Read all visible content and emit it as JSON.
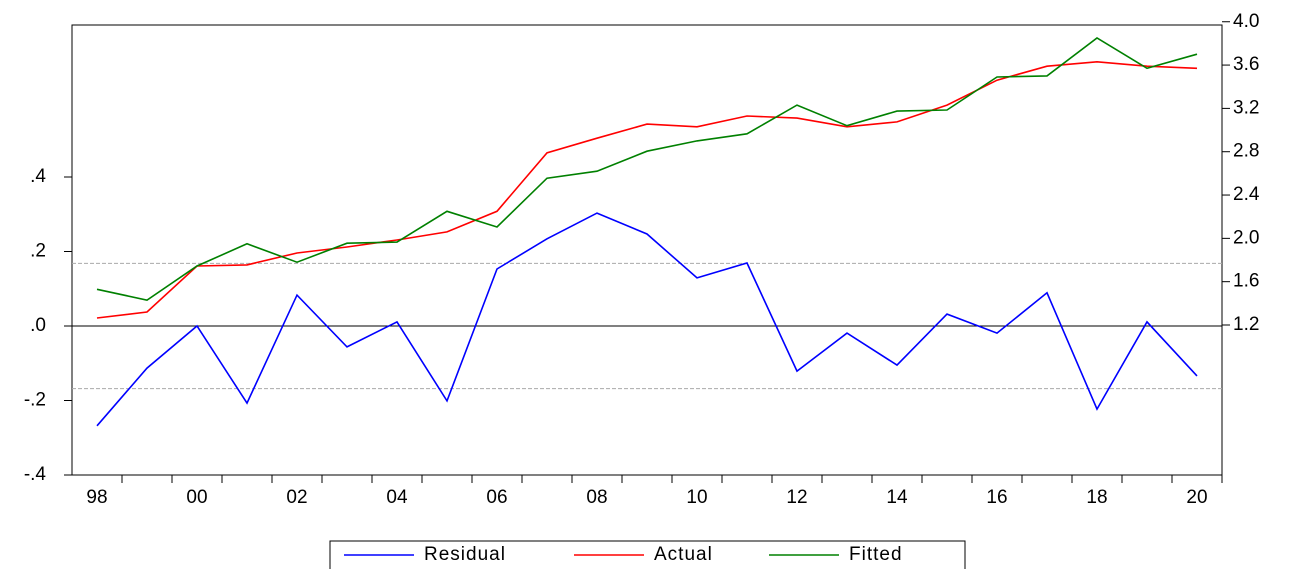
{
  "chart_data": {
    "type": "line",
    "categories": [
      "98",
      null,
      "00",
      null,
      "02",
      null,
      "04",
      null,
      "06",
      null,
      "08",
      null,
      "10",
      null,
      "12",
      null,
      "14",
      null,
      "16",
      null,
      "18",
      null,
      "20"
    ],
    "series": [
      {
        "name": "Residual",
        "color": "#0000ff",
        "axis": "y",
        "values": [
          -0.268,
          -0.113,
          0.0,
          -0.207,
          0.083,
          -0.056,
          0.011,
          -0.201,
          0.153,
          0.234,
          0.303,
          0.247,
          0.129,
          0.169,
          -0.121,
          -0.019,
          -0.105,
          0.032,
          -0.019,
          0.089,
          -0.223,
          0.011,
          -0.134
        ]
      },
      {
        "name": "Actual",
        "color": "#ff0000",
        "axis": "y2",
        "values": [
          1.265,
          1.32,
          1.745,
          1.755,
          1.865,
          1.92,
          1.985,
          2.06,
          2.25,
          2.79,
          2.925,
          3.055,
          3.03,
          3.13,
          3.11,
          3.03,
          3.075,
          3.23,
          3.46,
          3.59,
          3.63,
          3.59,
          3.57
        ]
      },
      {
        "name": "Fitted",
        "color": "#008000",
        "axis": "y2",
        "values": [
          1.53,
          1.43,
          1.745,
          1.95,
          1.78,
          1.955,
          1.965,
          2.25,
          2.105,
          2.555,
          2.62,
          2.805,
          2.9,
          2.965,
          3.23,
          3.04,
          3.175,
          3.185,
          3.49,
          3.5,
          3.85,
          3.57,
          3.7
        ]
      }
    ],
    "ylim": [
      -0.4,
      0.808
    ],
    "yticks": [
      {
        "value": -0.4,
        "label": "-.4"
      },
      {
        "value": -0.2,
        "label": "-.2"
      },
      {
        "value": 0,
        "label": ".0"
      },
      {
        "value": 0.2,
        "label": ".2"
      },
      {
        "value": 0.4,
        "label": ".4"
      }
    ],
    "y2lim": [
      -0.185,
      3.97
    ],
    "y2ticks": [
      1.2,
      1.6,
      {
        "value": 2.0,
        "label": "2.0"
      },
      2.4,
      2.8,
      3.2,
      3.6,
      {
        "value": 4.0,
        "label": "4.0"
      }
    ],
    "zero_line": 0,
    "se_bands": [
      0.168,
      -0.168
    ],
    "legend": "bottom"
  }
}
